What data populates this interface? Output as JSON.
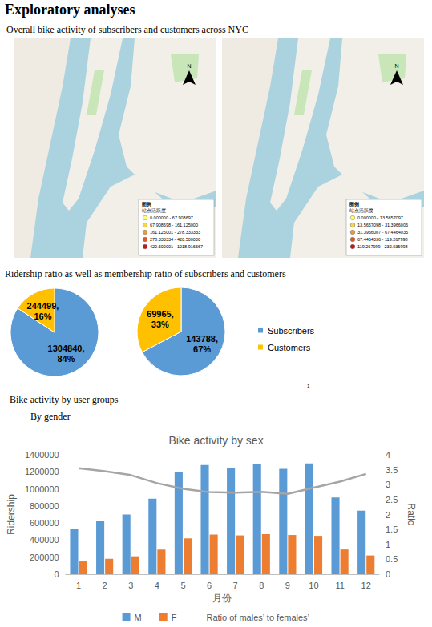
{
  "page": {
    "title": "Exploratory analyses",
    "map_heading": "Overall bike activity of subscribers and customers across NYC",
    "pie_heading": "Ridership ratio as well as membership ratio of subscribers and customers",
    "group_heading": "Bike activity by user groups",
    "sub_heading": "By gender",
    "footnote": "1"
  },
  "maps": [
    {
      "north_label": "N",
      "legend_title": "图例",
      "legend_subtitle": "站点活跃度",
      "classes": [
        "0.000000 - 67.908697",
        "67.908698 - 161.125000",
        "161.125001 - 278.333333",
        "278.333334 - 420.500000",
        "420.500001 - 1018.916667"
      ],
      "colors": [
        "#ffff73",
        "#f7d54a",
        "#ec9a32",
        "#df5a28",
        "#c8161d"
      ]
    },
    {
      "north_label": "N",
      "legend_title": "图例",
      "legend_subtitle": "站点活跃度",
      "classes": [
        "0.000000 - 13.5657097",
        "13.5657098 - 31.3966006",
        "31.3966007 - 67.4464035",
        "67.4464036 - 119.267998",
        "119.267999 - 232.035998"
      ],
      "colors": [
        "#ffff73",
        "#f7d54a",
        "#ec9a32",
        "#df5a28",
        "#c8161d"
      ]
    }
  ],
  "chart_data": [
    {
      "type": "pie",
      "categories": [
        "Subscribers",
        "Customers"
      ],
      "values": [
        1304840,
        244499
      ],
      "value_labels": [
        "1304840,\n84%",
        "244499,\n16%"
      ],
      "colors": [
        "#5b9bd5",
        "#ffc000"
      ],
      "legend": "right"
    },
    {
      "type": "pie",
      "categories": [
        "Subscribers",
        "Customers"
      ],
      "values": [
        143788,
        69965
      ],
      "value_labels": [
        "143788,\n67%",
        "69965,\n33%"
      ],
      "colors": [
        "#5b9bd5",
        "#ffc000"
      ],
      "legend": "right"
    },
    {
      "type": "bar",
      "title": "Bike activity by sex",
      "categories": [
        "1",
        "2",
        "3",
        "4",
        "5",
        "6",
        "7",
        "8",
        "9",
        "10",
        "11",
        "12"
      ],
      "x_label": "月份",
      "y_label": "Ridership",
      "y2_label": "Ratio",
      "series": [
        {
          "name": "M",
          "type": "bar",
          "color": "#5b9bd5",
          "values": [
            530000,
            620000,
            700000,
            885000,
            1200000,
            1280000,
            1240000,
            1295000,
            1235000,
            1300000,
            900000,
            745000
          ]
        },
        {
          "name": "F",
          "type": "bar",
          "color": "#ed7d31",
          "values": [
            150000,
            180000,
            210000,
            290000,
            420000,
            465000,
            455000,
            470000,
            460000,
            450000,
            290000,
            220000
          ]
        },
        {
          "name": "Ratio of males’ to females’",
          "type": "line",
          "axis": "y2",
          "color": "#a5a5a5",
          "values": [
            3.55,
            3.45,
            3.32,
            3.05,
            2.86,
            2.75,
            2.73,
            2.76,
            2.69,
            2.9,
            3.1,
            3.36
          ]
        }
      ],
      "ylim": [
        0,
        1400000
      ],
      "yticks": [
        0,
        200000,
        400000,
        600000,
        800000,
        1000000,
        1200000,
        1400000
      ],
      "y2lim": [
        0,
        4
      ],
      "y2ticks": [
        0,
        0.5,
        1,
        1.5,
        2,
        2.5,
        3,
        3.5,
        4
      ],
      "grid": false,
      "legend": "bottom"
    }
  ]
}
